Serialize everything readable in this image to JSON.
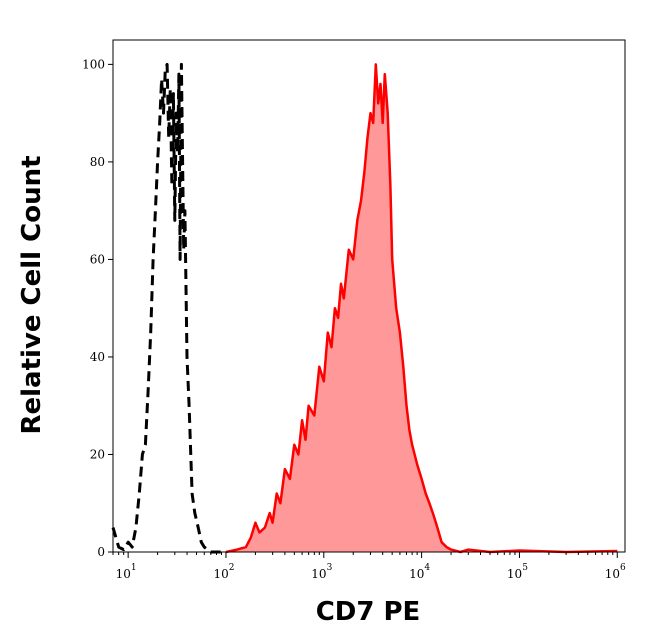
{
  "chart_data": {
    "type": "area",
    "title": "",
    "xlabel": "CD7 PE",
    "ylabel": "Relative Cell Count",
    "x_scale": "log",
    "xlim": [
      7,
      1200000
    ],
    "ylim": [
      0,
      105
    ],
    "x_ticks": [
      {
        "value": 10,
        "base": "10",
        "exp": "1"
      },
      {
        "value": 100,
        "base": "10",
        "exp": "2"
      },
      {
        "value": 1000,
        "base": "10",
        "exp": "3"
      },
      {
        "value": 10000,
        "base": "10",
        "exp": "4"
      },
      {
        "value": 100000,
        "base": "10",
        "exp": "5"
      },
      {
        "value": 1000000,
        "base": "10",
        "exp": "6"
      }
    ],
    "y_ticks": [
      "0",
      "20",
      "40",
      "60",
      "80",
      "100"
    ],
    "grid": false,
    "series": [
      {
        "style": "dashed",
        "color": "#000000",
        "fill": "none",
        "x": [
          7,
          8,
          9,
          10,
          11,
          12,
          13,
          14,
          15,
          16,
          17,
          18,
          19,
          20,
          21,
          22,
          23,
          24,
          25,
          26,
          27,
          28,
          29,
          30,
          31,
          32,
          33,
          34,
          35,
          36,
          37,
          38,
          40,
          42,
          45,
          48,
          52,
          56,
          60,
          65,
          70,
          80,
          90,
          100
        ],
        "y": [
          5,
          1,
          0.5,
          2,
          1,
          5,
          12,
          20,
          22,
          33,
          45,
          60,
          70,
          80,
          88,
          97,
          90,
          99,
          100,
          85,
          95,
          75,
          94,
          68,
          90,
          82,
          98,
          60,
          100,
          80,
          62,
          70,
          40,
          30,
          12,
          8,
          5,
          2,
          1,
          0.5,
          0,
          0,
          0,
          0
        ]
      },
      {
        "style": "solid",
        "color": "#ff0000",
        "fill": "#ff9999",
        "x": [
          100,
          130,
          160,
          180,
          200,
          220,
          250,
          280,
          300,
          330,
          360,
          400,
          450,
          500,
          550,
          600,
          650,
          700,
          800,
          900,
          1000,
          1100,
          1200,
          1300,
          1400,
          1500,
          1600,
          1800,
          2000,
          2200,
          2400,
          2600,
          2800,
          3000,
          3200,
          3400,
          3600,
          3800,
          4000,
          4200,
          4500,
          4800,
          5000,
          5500,
          6000,
          6500,
          7000,
          7500,
          8000,
          9000,
          10000,
          11000,
          12000,
          13000,
          14000,
          15000,
          16000,
          18000,
          20000,
          25000,
          30000,
          50000,
          100000,
          300000,
          1000000
        ],
        "y": [
          0,
          0.5,
          1,
          3,
          6,
          4,
          5,
          8,
          6,
          12,
          10,
          17,
          15,
          22,
          20,
          27,
          23,
          30,
          28,
          38,
          35,
          45,
          42,
          50,
          48,
          55,
          52,
          62,
          60,
          68,
          72,
          78,
          85,
          90,
          88,
          100,
          92,
          96,
          88,
          98,
          90,
          75,
          60,
          50,
          45,
          38,
          30,
          25,
          22,
          18,
          15,
          12,
          10,
          8,
          6,
          4,
          2,
          1,
          0.5,
          0,
          0.5,
          0,
          0.3,
          0,
          0.2
        ]
      }
    ]
  }
}
